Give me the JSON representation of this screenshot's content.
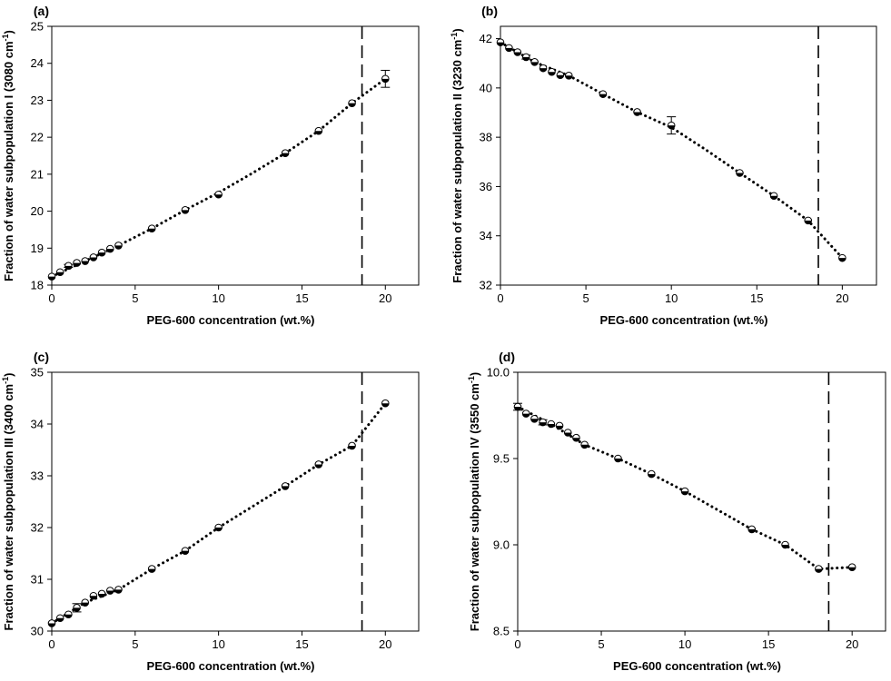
{
  "chart_data": [
    {
      "type": "scatter",
      "panel_label": "(a)",
      "xlabel": "PEG-600 concentration (wt.%)",
      "ylabel_main": "Fraction of water subpopulation I (3080 cm",
      "ylabel_sup": "-1",
      "ylabel_end": ")",
      "xlim": [
        0,
        22
      ],
      "ylim": [
        18,
        25
      ],
      "xticks": [
        0,
        5,
        10,
        15,
        20
      ],
      "yticks": [
        18,
        19,
        20,
        21,
        22,
        23,
        24,
        25
      ],
      "vline_x": 18.6,
      "series": [
        {
          "x": [
            0,
            0.5,
            1,
            1.5,
            2,
            2.5,
            3,
            3.5,
            4,
            6,
            8,
            10,
            14,
            16,
            18,
            20
          ],
          "y": [
            18.23,
            18.35,
            18.52,
            18.6,
            18.65,
            18.75,
            18.88,
            18.98,
            19.07,
            19.53,
            20.03,
            20.45,
            21.57,
            22.17,
            22.92,
            23.58
          ],
          "err": [
            0,
            0,
            0.04,
            0,
            0,
            0,
            0,
            0,
            0,
            0,
            0,
            0,
            0,
            0,
            0,
            0.23
          ]
        }
      ],
      "fit_line": {
        "x": [
          0,
          2,
          4,
          6,
          8,
          10,
          12,
          14,
          16,
          18,
          20
        ],
        "y": [
          18.23,
          18.65,
          19.07,
          19.53,
          20.03,
          20.5,
          21.02,
          21.57,
          22.17,
          22.92,
          23.58
        ]
      }
    },
    {
      "type": "scatter",
      "panel_label": "(b)",
      "xlabel": "PEG-600 concentration (wt.%)",
      "ylabel_main": "Fraction of water subpopulation II (3230 cm",
      "ylabel_sup": "-1",
      "ylabel_end": ")",
      "xlim": [
        0,
        22
      ],
      "ylim": [
        32,
        42.5
      ],
      "xticks": [
        0,
        5,
        10,
        15,
        20
      ],
      "yticks": [
        32,
        34,
        36,
        38,
        40,
        42
      ],
      "vline_x": 18.6,
      "series": [
        {
          "x": [
            0,
            0.5,
            1,
            1.5,
            2,
            2.5,
            3,
            3.5,
            4,
            6,
            8,
            10,
            14,
            16,
            18,
            20
          ],
          "y": [
            41.85,
            41.62,
            41.45,
            41.25,
            41.05,
            40.8,
            40.65,
            40.52,
            40.5,
            39.75,
            39.02,
            38.48,
            36.55,
            35.62,
            34.62,
            33.1
          ],
          "err": [
            0,
            0,
            0,
            0.08,
            0,
            0,
            0,
            0,
            0,
            0,
            0,
            0.35,
            0,
            0,
            0,
            0
          ]
        }
      ],
      "fit_line": {
        "x": [
          0,
          2,
          4,
          6,
          8,
          10,
          12,
          14,
          16,
          18,
          20
        ],
        "y": [
          41.85,
          41.05,
          40.5,
          39.75,
          39.02,
          38.4,
          37.5,
          36.55,
          35.62,
          34.62,
          33.1
        ]
      }
    },
    {
      "type": "scatter",
      "panel_label": "(c)",
      "xlabel": "PEG-600 concentration (wt.%)",
      "ylabel_main": "Fraction of water subpopulation III (3400 cm",
      "ylabel_sup": "-1",
      "ylabel_end": ")",
      "xlim": [
        0,
        22
      ],
      "ylim": [
        30,
        35
      ],
      "xticks": [
        0,
        5,
        10,
        15,
        20
      ],
      "yticks": [
        30,
        31,
        32,
        33,
        34,
        35
      ],
      "vline_x": 18.6,
      "series": [
        {
          "x": [
            0,
            0.5,
            1,
            1.5,
            2,
            2.5,
            3,
            3.5,
            4,
            6,
            8,
            10,
            14,
            16,
            18,
            20
          ],
          "y": [
            30.15,
            30.25,
            30.32,
            30.45,
            30.55,
            30.68,
            30.72,
            30.78,
            30.8,
            31.2,
            31.55,
            32.0,
            32.8,
            33.22,
            33.58,
            34.4
          ],
          "err": [
            0,
            0,
            0,
            0.08,
            0,
            0,
            0,
            0,
            0,
            0,
            0,
            0,
            0,
            0,
            0,
            0
          ]
        }
      ],
      "fit_line": {
        "x": [
          0,
          2,
          4,
          6,
          8,
          10,
          12,
          14,
          16,
          18,
          20
        ],
        "y": [
          30.15,
          30.55,
          30.8,
          31.2,
          31.55,
          32.0,
          32.4,
          32.8,
          33.22,
          33.58,
          34.4
        ]
      }
    },
    {
      "type": "scatter",
      "panel_label": "(d)",
      "xlabel": "PEG-600 concentration (wt.%)",
      "ylabel_main": "Fraction of water subpopulation IV (3550 cm",
      "ylabel_sup": "-1",
      "ylabel_end": ")",
      "xlim": [
        0,
        22
      ],
      "ylim": [
        8.5,
        10.0
      ],
      "xticks": [
        0,
        5,
        10,
        15,
        20
      ],
      "yticks": [
        8.5,
        9.0,
        9.5,
        10.0
      ],
      "ytick_format": "fixed1",
      "vline_x": 18.6,
      "series": [
        {
          "x": [
            0,
            0.5,
            1,
            1.5,
            2,
            2.5,
            3,
            3.5,
            4,
            6,
            8,
            10,
            14,
            16,
            18,
            20
          ],
          "y": [
            9.8,
            9.76,
            9.73,
            9.71,
            9.7,
            9.69,
            9.65,
            9.62,
            9.58,
            9.5,
            9.41,
            9.31,
            9.09,
            9.0,
            8.86,
            8.87
          ],
          "err": [
            0.02,
            0,
            0,
            0.015,
            0,
            0,
            0,
            0,
            0,
            0,
            0,
            0,
            0,
            0,
            0,
            0
          ]
        }
      ],
      "fit_line": {
        "x": [
          0,
          2,
          4,
          6,
          8,
          10,
          12,
          14,
          16,
          18,
          20
        ],
        "y": [
          9.8,
          9.7,
          9.58,
          9.5,
          9.41,
          9.31,
          9.2,
          9.09,
          9.0,
          8.86,
          8.87
        ]
      }
    }
  ]
}
